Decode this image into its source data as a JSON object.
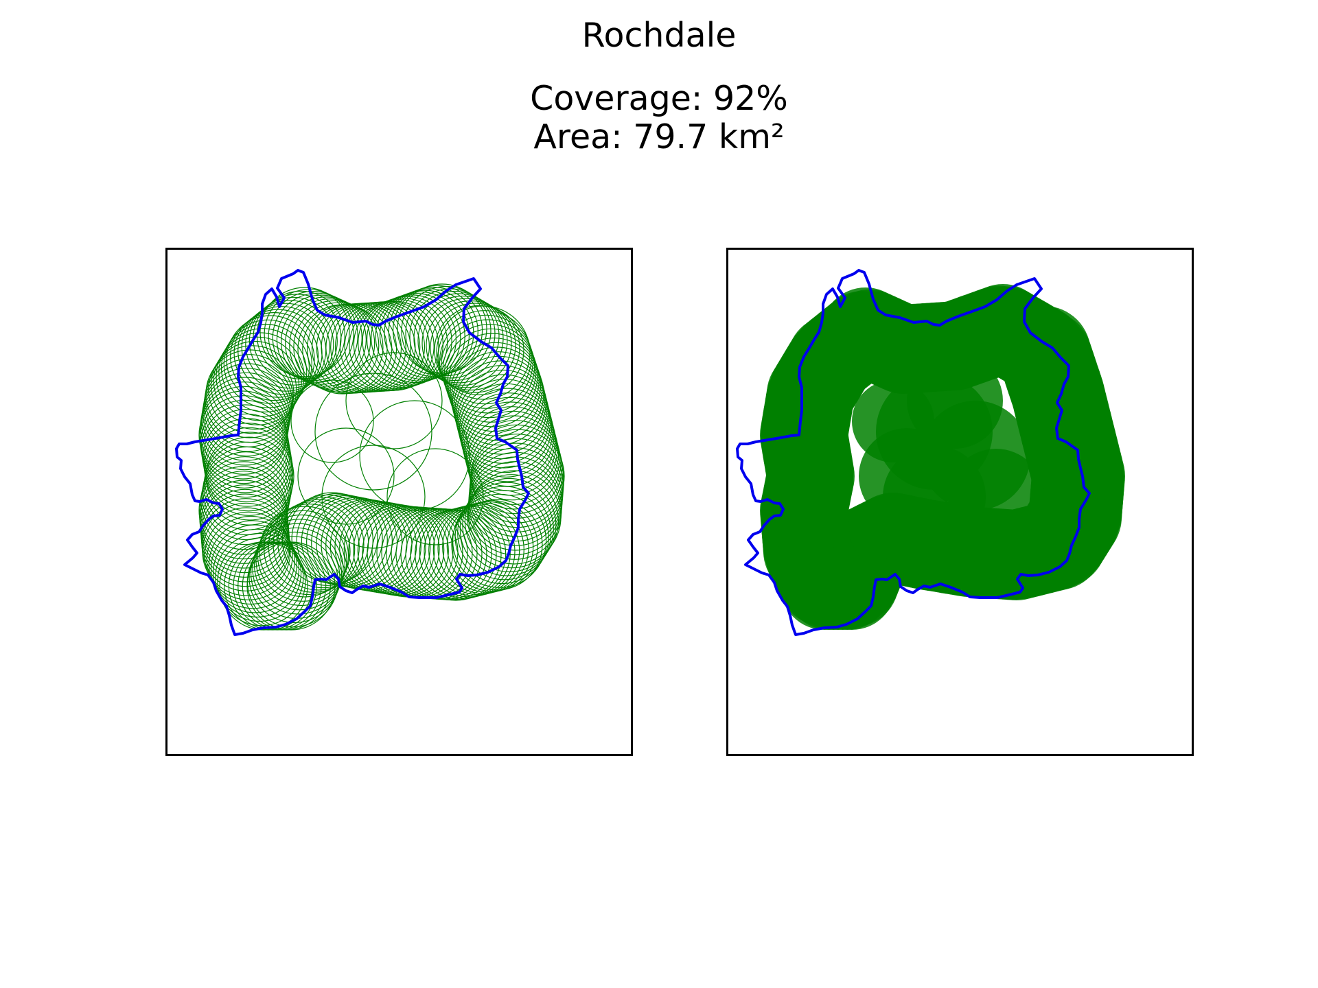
{
  "figure": {
    "title": "Rochdale",
    "coverage_text": "Coverage: 92%",
    "area_text": "Area: 79.7 km²"
  },
  "map": {
    "boundary_color": "#0000ee",
    "coverage_color": "#008000",
    "coverage_fraction": 0.92,
    "area_km2": 79.7,
    "panels": [
      {
        "style": "circle outlines"
      },
      {
        "style": "filled circles"
      }
    ]
  }
}
